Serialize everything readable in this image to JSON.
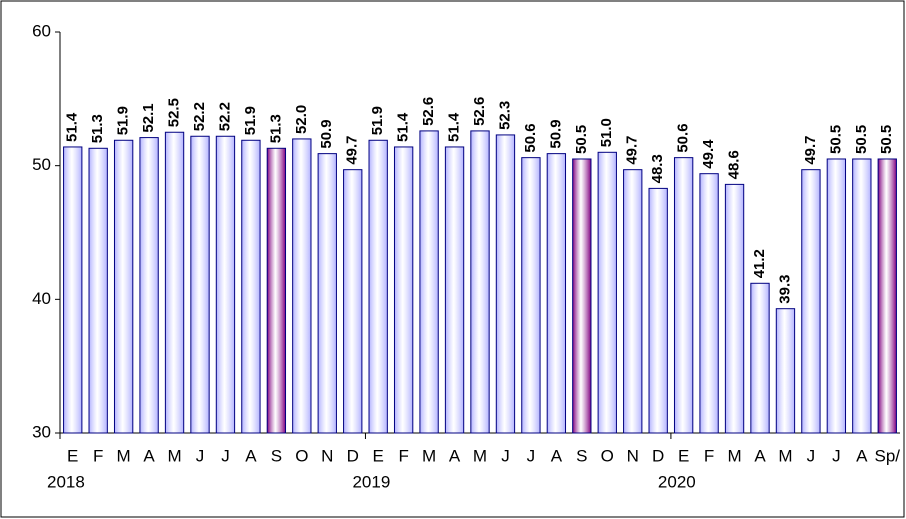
{
  "chart_data": {
    "type": "bar",
    "categories": [
      "E",
      "F",
      "M",
      "A",
      "M",
      "J",
      "J",
      "A",
      "S",
      "O",
      "N",
      "D",
      "E",
      "F",
      "M",
      "A",
      "M",
      "J",
      "J",
      "A",
      "S",
      "O",
      "N",
      "D",
      "E",
      "F",
      "M",
      "A",
      "M",
      "J",
      "J",
      "A",
      "Sp/"
    ],
    "years": [
      "2018",
      "2019",
      "2020"
    ],
    "values": [
      51.4,
      51.3,
      51.9,
      52.1,
      52.5,
      52.2,
      52.2,
      51.9,
      51.3,
      52.0,
      50.9,
      49.7,
      51.9,
      51.4,
      52.6,
      51.4,
      52.6,
      52.3,
      50.6,
      50.9,
      50.5,
      51.0,
      49.7,
      48.3,
      50.6,
      49.4,
      48.6,
      41.2,
      39.3,
      49.7,
      50.5,
      50.5,
      50.5
    ],
    "value_labels": [
      "51.4",
      "51.3",
      "51.9",
      "52.1",
      "52.5",
      "52.2",
      "52.2",
      "51.9",
      "51.3",
      "52.0",
      "50.9",
      "49.7",
      "51.9",
      "51.4",
      "52.6",
      "51.4",
      "52.6",
      "52.3",
      "50.6",
      "50.9",
      "50.5",
      "51.0",
      "49.7",
      "48.3",
      "50.6",
      "49.4",
      "48.6",
      "41.2",
      "39.3",
      "49.7",
      "50.5",
      "50.5",
      "50.5"
    ],
    "colors": [
      "#b3b3ff",
      "#b3b3ff",
      "#b3b3ff",
      "#b3b3ff",
      "#b3b3ff",
      "#b3b3ff",
      "#b3b3ff",
      "#b3b3ff",
      "#800080",
      "#b3b3ff",
      "#b3b3ff",
      "#b3b3ff",
      "#b3b3ff",
      "#b3b3ff",
      "#b3b3ff",
      "#b3b3ff",
      "#b3b3ff",
      "#b3b3ff",
      "#b3b3ff",
      "#b3b3ff",
      "#800080",
      "#b3b3ff",
      "#b3b3ff",
      "#b3b3ff",
      "#b3b3ff",
      "#b3b3ff",
      "#b3b3ff",
      "#b3b3ff",
      "#b3b3ff",
      "#b3b3ff",
      "#b3b3ff",
      "#b3b3ff",
      "#800080"
    ],
    "ylim": [
      30,
      60
    ],
    "yticks": [
      30,
      40,
      50,
      60
    ],
    "grid": false
  }
}
